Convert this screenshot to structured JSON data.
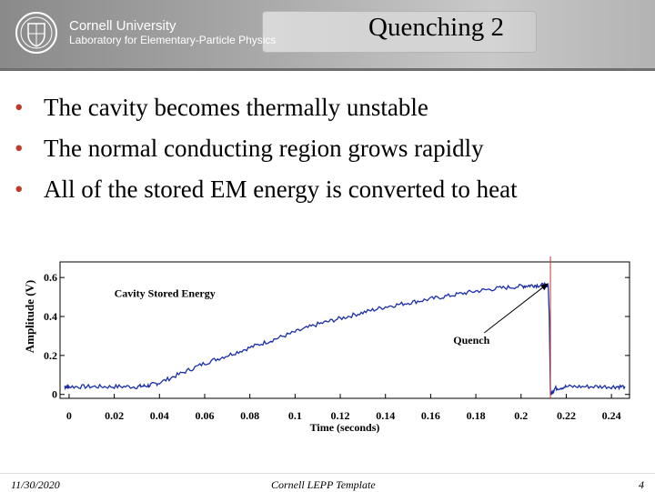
{
  "header": {
    "university": "Cornell University",
    "lab": "Laboratory for Elementary-Particle Physics"
  },
  "slide": {
    "title": "Quenching 2",
    "bullets": [
      "The cavity becomes thermally unstable",
      "The normal conducting region grows rapidly",
      "All of the stored EM energy is converted to heat"
    ]
  },
  "footer": {
    "date": "11/30/2020",
    "template": "Cornell LEPP Template",
    "page": "4"
  },
  "colors": {
    "trace": "#1a2fa8",
    "bullet": "#c0392b",
    "quench_line": "#c0392b"
  },
  "chart_data": {
    "type": "line",
    "xlabel": "Time (seconds)",
    "ylabel": "Amplitude (V)",
    "xlim": [
      -0.004,
      0.248
    ],
    "ylim": [
      -0.02,
      0.68
    ],
    "xticks": [
      0,
      0.02,
      0.04,
      0.06,
      0.08,
      0.1,
      0.12,
      0.14,
      0.16,
      0.18,
      0.2,
      0.22,
      0.24
    ],
    "xtick_labels": [
      "0",
      "0.02",
      "0.04",
      "0.06",
      "0.08",
      "0.1",
      "0.12",
      "0.14",
      "0.16",
      "0.18",
      "0.2",
      "0.22",
      "0.24"
    ],
    "yticks": [
      0,
      0.2,
      0.4,
      0.6
    ],
    "ytick_labels": [
      "0",
      "0.2",
      "0.4",
      "0.6"
    ],
    "grid": false,
    "annotations": [
      {
        "text": "Cavity Stored Energy",
        "x": 0.02,
        "y": 0.5
      },
      {
        "text": "Quench",
        "x": 0.17,
        "y": 0.26,
        "arrow_to": [
          0.212,
          0.57
        ]
      }
    ],
    "quench_time": 0.213,
    "series": [
      {
        "x": [
          -0.002,
          0.0,
          0.01,
          0.02,
          0.03,
          0.035,
          0.04,
          0.05,
          0.06,
          0.07,
          0.08,
          0.09,
          0.1,
          0.11,
          0.12,
          0.13,
          0.14,
          0.15,
          0.16,
          0.17,
          0.18,
          0.19,
          0.2,
          0.205,
          0.21,
          0.212,
          0.2125,
          0.213,
          0.215,
          0.22,
          0.23,
          0.24,
          0.246
        ],
        "y": [
          0.04,
          0.04,
          0.04,
          0.04,
          0.04,
          0.045,
          0.06,
          0.11,
          0.16,
          0.2,
          0.24,
          0.28,
          0.32,
          0.36,
          0.39,
          0.42,
          0.45,
          0.47,
          0.49,
          0.51,
          0.53,
          0.545,
          0.555,
          0.56,
          0.56,
          0.56,
          0.4,
          0.0,
          0.03,
          0.04,
          0.04,
          0.04,
          0.04
        ]
      }
    ]
  }
}
